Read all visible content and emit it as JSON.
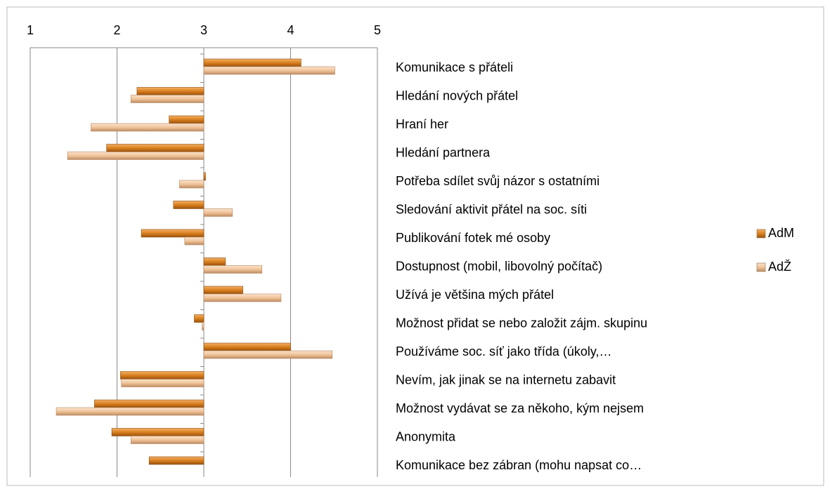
{
  "chart_data": {
    "type": "bar",
    "orientation": "horizontal",
    "categories": [
      "Komunikace s přáteli",
      "Hledání nových přátel",
      "Hraní her",
      "Hledání partnera",
      "Potřeba sdílet svůj názor s ostatními",
      "Sledování aktivit přátel na soc. síti",
      "Publikování fotek mé osoby",
      "Dostupnost (mobil, libovolný počítač)",
      "Užívá je většina mých přátel",
      "Možnost přidat se nebo založit zájm. skupinu",
      "Používáme soc. síť jako třída (úkoly,…",
      "Nevím, jak jinak se na internetu zabavit",
      "Možnost vydávat se za někoho, kým nejsem",
      "Anonymita",
      "Komunikace bez zábran (mohu napsat co…"
    ],
    "series": [
      {
        "name": "AdM",
        "color": "#d9801f",
        "values": [
          4.12,
          2.23,
          2.6,
          1.88,
          3.02,
          2.65,
          2.28,
          3.25,
          3.45,
          2.89,
          4.0,
          2.04,
          1.74,
          1.94,
          2.37
        ]
      },
      {
        "name": "AdŽ",
        "color": "#f0c49a",
        "values": [
          4.51,
          2.16,
          1.7,
          1.43,
          2.72,
          3.33,
          2.78,
          3.67,
          3.89,
          2.98,
          4.48,
          2.05,
          1.3,
          2.16,
          null
        ]
      }
    ],
    "xlim": [
      1,
      5
    ],
    "xticks": [
      1,
      2,
      3,
      4,
      5
    ],
    "base": 3,
    "grid": true,
    "legend": "right"
  }
}
